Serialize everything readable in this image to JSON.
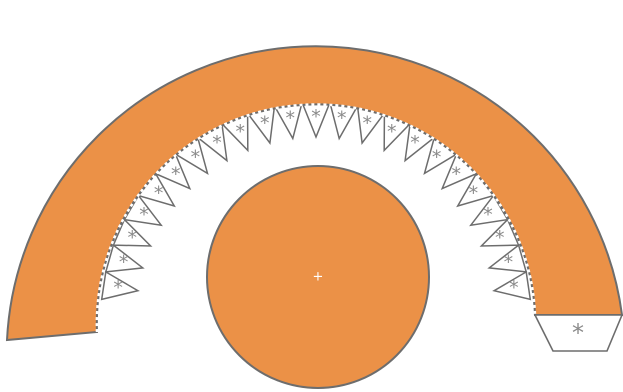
{
  "colors": {
    "fill": "#eb9147",
    "stroke": "#6d6d6d",
    "dotted_line": "#ffffff",
    "tab_mark": "#8a8a8a",
    "background": "#ffffff"
  },
  "cone_template": {
    "tab_mark": "*",
    "glue_tab_count": 23,
    "base_circle_mark": "+"
  }
}
